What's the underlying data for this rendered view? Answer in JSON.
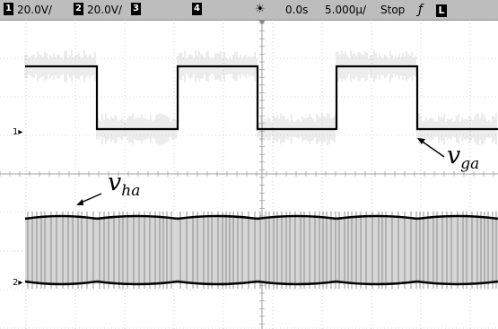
{
  "status_bar": {
    "ch1_num": "1",
    "ch1_scale": "20.0V/",
    "ch2_num": "2",
    "ch2_scale": "20.0V/",
    "ch3_num": "3",
    "ch4_num": "4",
    "trigger_point_icon": "sun-icon",
    "delay": "0.0s",
    "timebase": "5.000µ/",
    "run_state": "Stop",
    "trigger_edge_icon": "rising-edge-icon",
    "trigger_edge_glyph": "ƒ",
    "trigger_source": "L"
  },
  "labels": {
    "v_ga_main": "v",
    "v_ga_sub": "ga",
    "v_ha_main": "v",
    "v_ha_sub": "ha"
  },
  "ground_markers": {
    "ch1": "1",
    "ch2": "2"
  },
  "colors": {
    "bar": "#bdbdbd",
    "grid": "#b0b0b0",
    "trace": "#000000",
    "trace_noise": "#c8c8c8"
  },
  "chart_data": {
    "type": "line",
    "series": [
      {
        "name": "v_ga",
        "ch": 1,
        "transitions": [
          0,
          108,
          198,
          287,
          375,
          465
        ],
        "levels": [
          "high",
          "low",
          "high",
          "low",
          "high",
          "low",
          "high"
        ]
      },
      {
        "name": "v_ha",
        "ch": 2,
        "pwm_blocks": [
          [
            28,
            108
          ],
          [
            108,
            198
          ],
          [
            198,
            287
          ],
          [
            287,
            375
          ],
          [
            375,
            465
          ],
          [
            465,
            555
          ]
        ]
      }
    ],
    "grid": true
  }
}
